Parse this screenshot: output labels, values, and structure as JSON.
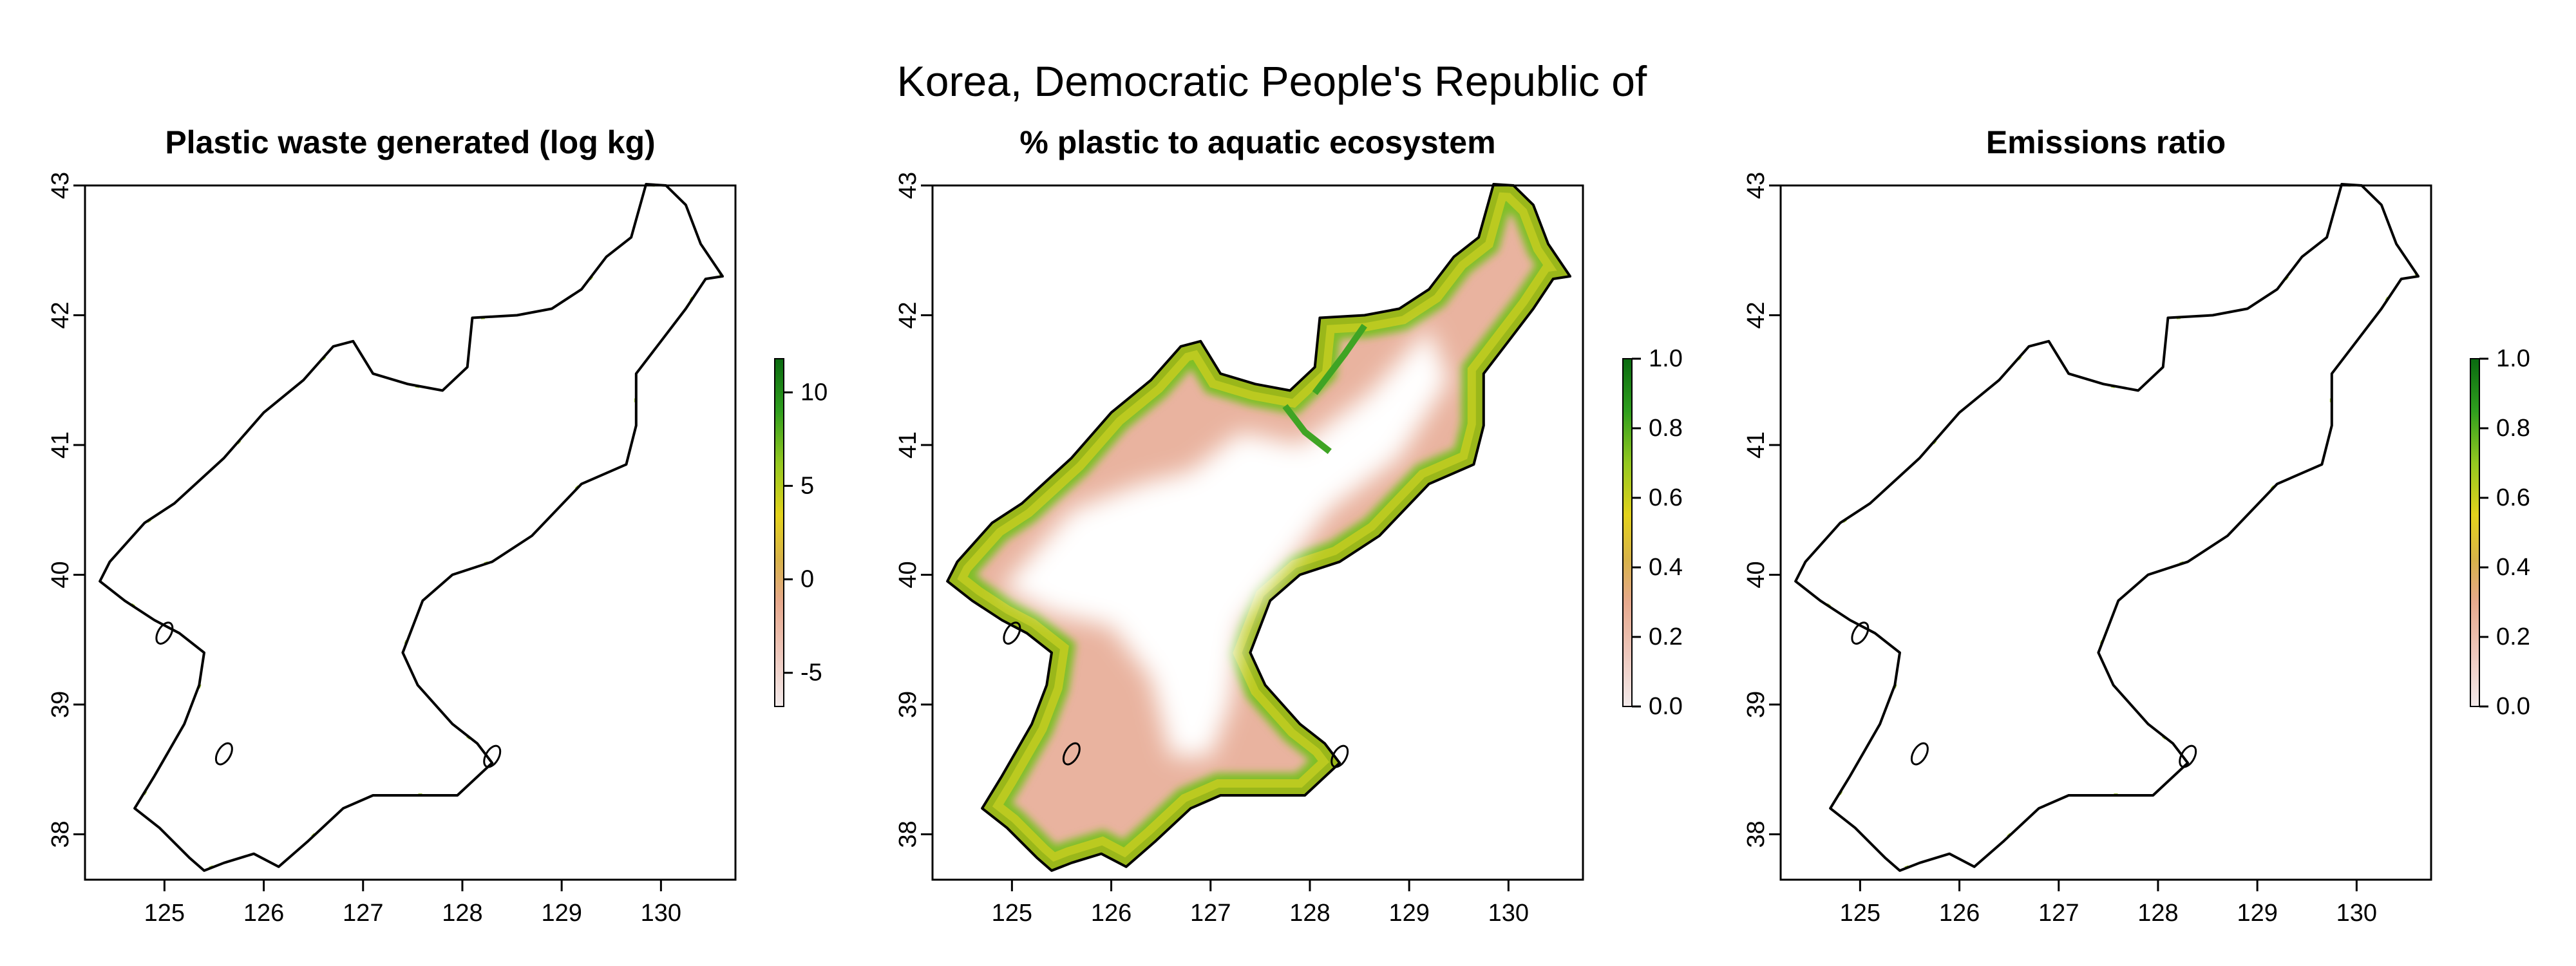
{
  "figure_title": "Korea, Democratic People's Republic of",
  "colors": {
    "coastline": "#000000",
    "scale": [
      "#f3eaea",
      "#eec8bd",
      "#e7a98d",
      "#d8b24a",
      "#e3d21c",
      "#94c820",
      "#2f9e1e",
      "#0a6a10"
    ]
  },
  "panels": [
    {
      "title": "Plastic waste generated (log kg)",
      "x_ticks": [
        "125",
        "126",
        "127",
        "128",
        "129",
        "130"
      ],
      "y_ticks": [
        "38",
        "39",
        "40",
        "41",
        "42",
        "43"
      ],
      "legend": {
        "ticks": [
          "10",
          "5",
          "0",
          "-5"
        ],
        "tick_values": [
          10,
          5,
          0,
          -5
        ],
        "min": -6.8,
        "max": 11.8
      },
      "fill": "coast_sparse"
    },
    {
      "title": "% plastic to aquatic ecosystem",
      "x_ticks": [
        "125",
        "126",
        "127",
        "128",
        "129",
        "130"
      ],
      "y_ticks": [
        "38",
        "39",
        "40",
        "41",
        "42",
        "43"
      ],
      "legend": {
        "ticks": [
          "1.0",
          "0.8",
          "0.6",
          "0.4",
          "0.2",
          "0.0"
        ],
        "tick_values": [
          1.0,
          0.8,
          0.6,
          0.4,
          0.2,
          0.0
        ],
        "min": 0,
        "max": 1
      },
      "fill": "full"
    },
    {
      "title": "Emissions ratio",
      "x_ticks": [
        "125",
        "126",
        "127",
        "128",
        "129",
        "130"
      ],
      "y_ticks": [
        "38",
        "39",
        "40",
        "41",
        "42",
        "43"
      ],
      "legend": {
        "ticks": [
          "1.0",
          "0.8",
          "0.6",
          "0.4",
          "0.2",
          "0.0"
        ],
        "tick_values": [
          1.0,
          0.8,
          0.6,
          0.4,
          0.2,
          0.0
        ],
        "min": 0,
        "max": 1
      },
      "fill": "coast_sparse"
    }
  ]
}
